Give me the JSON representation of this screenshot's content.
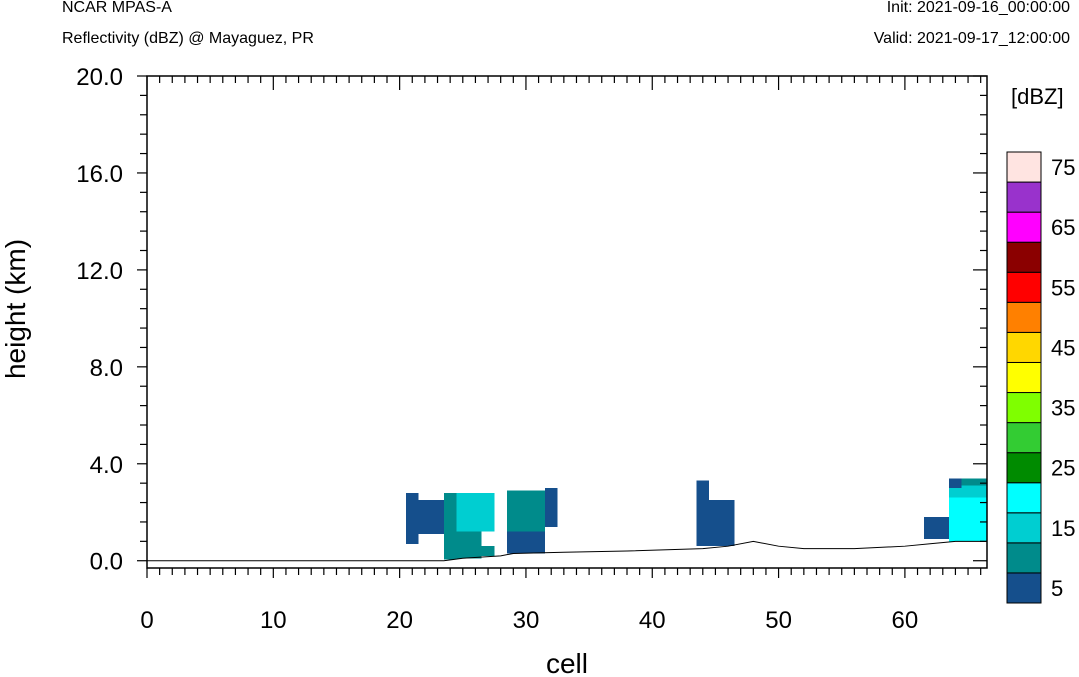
{
  "header": {
    "model": "NCAR MPAS-A",
    "field": "Reflectivity (dBZ) @ Mayaguez, PR",
    "init": "Init: 2021-09-16_00:00:00",
    "valid": "Valid: 2021-09-17_12:00:00"
  },
  "chart_data": {
    "type": "heatmap",
    "title": "Reflectivity (dBZ) @ Mayaguez, PR",
    "xlabel": "cell",
    "ylabel": "height (km)",
    "xlim": [
      0,
      66.5
    ],
    "ylim": [
      -0.3,
      20.0
    ],
    "xticks": [
      0,
      10,
      20,
      30,
      40,
      50,
      60
    ],
    "yticks": [
      0.0,
      4.0,
      8.0,
      12.0,
      16.0,
      20.0
    ],
    "ytick_labels": [
      "0.0",
      "4.0",
      "8.0",
      "12.0",
      "16.0",
      "20.0"
    ],
    "grid": false,
    "colorbar": {
      "units": "[dBZ]",
      "labels": [
        "5",
        "15",
        "25",
        "35",
        "45",
        "55",
        "65",
        "75"
      ],
      "colors": [
        "#154f8c",
        "#008b8b",
        "#00ced1",
        "#00ffff",
        "#008b00",
        "#33cc33",
        "#7fff00",
        "#ffff00",
        "#ffd700",
        "#ff8000",
        "#ff0000",
        "#8b0000",
        "#ff00ff",
        "#9932cc",
        "#ffe4e1"
      ]
    },
    "terrain": [
      [
        0,
        0.0
      ],
      [
        23.5,
        0.0
      ],
      [
        25,
        0.1
      ],
      [
        28,
        0.2
      ],
      [
        29,
        0.3
      ],
      [
        33,
        0.35
      ],
      [
        38,
        0.4
      ],
      [
        44,
        0.5
      ],
      [
        46,
        0.6
      ],
      [
        48,
        0.8
      ],
      [
        50,
        0.6
      ],
      [
        52,
        0.5
      ],
      [
        56,
        0.5
      ],
      [
        60,
        0.6
      ],
      [
        62,
        0.7
      ],
      [
        64,
        0.8
      ],
      [
        66.5,
        0.8
      ]
    ],
    "cells": [
      {
        "x0": 20.5,
        "x1": 21.5,
        "y0": 0.7,
        "y1": 2.8,
        "dbz": 5
      },
      {
        "x0": 21.5,
        "x1": 23.5,
        "y0": 1.1,
        "y1": 2.5,
        "dbz": 5
      },
      {
        "x0": 23.5,
        "x1": 24.5,
        "y0": 0.05,
        "y1": 2.8,
        "dbz": 10
      },
      {
        "x0": 24.5,
        "x1": 27.5,
        "y0": 1.2,
        "y1": 2.8,
        "dbz": 15
      },
      {
        "x0": 24.5,
        "x1": 26.5,
        "y0": 0.1,
        "y1": 1.2,
        "dbz": 10
      },
      {
        "x0": 26.5,
        "x1": 27.5,
        "y0": 0.2,
        "y1": 0.6,
        "dbz": 10
      },
      {
        "x0": 28.5,
        "x1": 31.5,
        "y0": 1.2,
        "y1": 2.9,
        "dbz": 10
      },
      {
        "x0": 28.5,
        "x1": 31.5,
        "y0": 0.3,
        "y1": 1.2,
        "dbz": 5
      },
      {
        "x0": 31.5,
        "x1": 32.5,
        "y0": 1.4,
        "y1": 3.0,
        "dbz": 5
      },
      {
        "x0": 43.5,
        "x1": 44.5,
        "y0": 0.6,
        "y1": 3.3,
        "dbz": 5
      },
      {
        "x0": 44.5,
        "x1": 46.5,
        "y0": 0.6,
        "y1": 2.5,
        "dbz": 5
      },
      {
        "x0": 61.5,
        "x1": 63.5,
        "y0": 0.9,
        "y1": 1.8,
        "dbz": 5
      },
      {
        "x0": 63.5,
        "x1": 66.5,
        "y0": 0.8,
        "y1": 2.6,
        "dbz": 20
      },
      {
        "x0": 63.5,
        "x1": 64.5,
        "y0": 2.6,
        "y1": 3.0,
        "dbz": 15
      },
      {
        "x0": 64.5,
        "x1": 66.5,
        "y0": 2.6,
        "y1": 3.1,
        "dbz": 15
      },
      {
        "x0": 63.5,
        "x1": 64.5,
        "y0": 3.0,
        "y1": 3.4,
        "dbz": 5
      },
      {
        "x0": 64.5,
        "x1": 66.5,
        "y0": 3.1,
        "y1": 3.4,
        "dbz": 10
      }
    ]
  }
}
